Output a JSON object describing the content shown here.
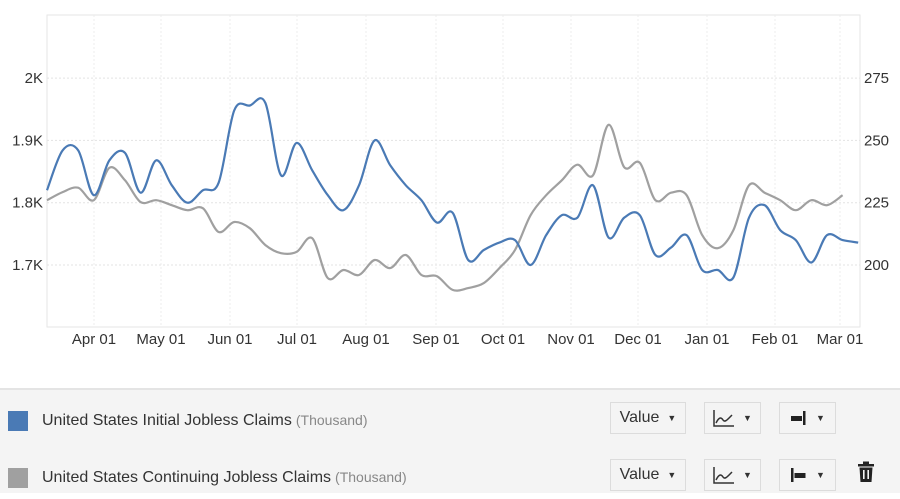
{
  "chart_data": {
    "type": "line",
    "title": "",
    "xlabel": "",
    "x_ticks": [
      "Apr 01",
      "May 01",
      "Jun 01",
      "Jul 01",
      "Aug 01",
      "Sep 01",
      "Oct 01",
      "Nov 01",
      "Dec 01",
      "Jan 01",
      "Feb 01",
      "Mar 01"
    ],
    "left_axis": {
      "ticks": [
        "1.7K",
        "1.8K",
        "1.9K",
        "2K"
      ],
      "tick_values": [
        1700,
        1800,
        1900,
        2000
      ],
      "ylim": [
        1600,
        2100
      ],
      "series": "United States Continuing Jobless Claims"
    },
    "right_axis": {
      "ticks": [
        "200",
        "225",
        "250",
        "275"
      ],
      "tick_values": [
        200,
        225,
        250,
        275
      ],
      "ylim": [
        175,
        300
      ],
      "series": "United States Initial Jobless Claims"
    },
    "grid": true,
    "legend_position": "bottom-panel",
    "x": [
      "Mar 11",
      "Mar 18",
      "Mar 25",
      "Apr 01",
      "Apr 08",
      "Apr 15",
      "Apr 22",
      "Apr 29",
      "May 06",
      "May 13",
      "May 20",
      "May 27",
      "Jun 03",
      "Jun 10",
      "Jun 17",
      "Jun 24",
      "Jul 01",
      "Jul 08",
      "Jul 15",
      "Jul 22",
      "Jul 29",
      "Aug 05",
      "Aug 12",
      "Aug 19",
      "Aug 26",
      "Sep 02",
      "Sep 09",
      "Sep 16",
      "Sep 23",
      "Sep 30",
      "Oct 07",
      "Oct 14",
      "Oct 21",
      "Oct 28",
      "Nov 04",
      "Nov 11",
      "Nov 18",
      "Nov 25",
      "Dec 02",
      "Dec 09",
      "Dec 16",
      "Dec 23",
      "Dec 30",
      "Jan 06",
      "Jan 13",
      "Jan 20",
      "Jan 27",
      "Feb 03",
      "Feb 10",
      "Feb 17",
      "Feb 24",
      "Mar 03",
      "Mar 10"
    ],
    "series": [
      {
        "name": "United States Initial Jobless Claims",
        "unit": "Thousand",
        "axis": "right",
        "color": "#4a7ab5",
        "values": [
          230,
          246,
          246,
          228,
          242,
          245,
          229,
          242,
          232,
          225,
          230,
          233,
          262,
          264,
          265,
          236,
          249,
          238,
          228,
          222,
          232,
          250,
          240,
          232,
          226,
          217,
          221,
          202,
          206,
          209,
          210,
          200,
          212,
          220,
          219,
          232,
          211,
          219,
          220,
          204,
          207,
          212,
          198,
          198,
          195,
          219,
          224,
          214,
          210,
          201,
          212,
          210,
          209
        ]
      },
      {
        "name": "United States Continuing Jobless Claims",
        "unit": "Thousand",
        "axis": "left",
        "color": "#a0a0a0",
        "values": [
          1804,
          1817,
          1824,
          1804,
          1856,
          1836,
          1801,
          1804,
          1796,
          1788,
          1791,
          1753,
          1769,
          1759,
          1732,
          1719,
          1721,
          1743,
          1679,
          1692,
          1684,
          1708,
          1695,
          1716,
          1684,
          1682,
          1660,
          1663,
          1671,
          1695,
          1724,
          1780,
          1812,
          1836,
          1861,
          1844,
          1925,
          1857,
          1864,
          1804,
          1816,
          1812,
          1748,
          1727,
          1756,
          1828,
          1816,
          1804,
          1788,
          1804,
          1796,
          1812
        ]
      }
    ]
  },
  "legend": {
    "rows": [
      {
        "name": "United States Initial Jobless Claims",
        "unit": "(Thousand)",
        "color": "#4a7ab5",
        "value_select": "Value",
        "chart_type_icon": "line-chart-icon",
        "axis_icon": "right-axis-icon"
      },
      {
        "name": "United States Continuing Jobless Claims",
        "unit": "(Thousand)",
        "color": "#a0a0a0",
        "value_select": "Value",
        "chart_type_icon": "line-chart-icon",
        "axis_icon": "left-axis-icon",
        "delete_icon": "trash-icon"
      }
    ]
  }
}
